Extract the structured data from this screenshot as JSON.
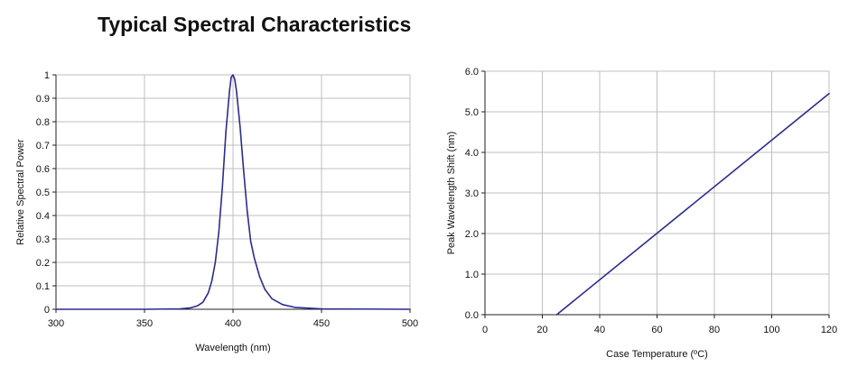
{
  "page_title": "Typical Spectral Characteristics",
  "colors": {
    "line": "#2b2b8f",
    "grid": "#bfbfbf",
    "axis": "#222222",
    "background": "#ffffff"
  },
  "chart_data": [
    {
      "type": "line",
      "title": "",
      "xlabel": "Wavelength (nm)",
      "ylabel": "Relative Spectral Power",
      "xlim": [
        300,
        500
      ],
      "ylim": [
        0,
        1
      ],
      "xticks": [
        300,
        350,
        400,
        450,
        500
      ],
      "xtick_labels": [
        "300",
        "350",
        "400",
        "450",
        "500"
      ],
      "yticks": [
        0,
        0.1,
        0.2,
        0.3,
        0.4,
        0.5,
        0.6,
        0.7,
        0.8,
        0.9,
        1
      ],
      "ytick_labels": [
        "0",
        "0.1",
        "0.2",
        "0.3",
        "0.4",
        "0.5",
        "0.6",
        "0.7",
        "0.8",
        "0.9",
        "1"
      ],
      "grid": true,
      "legend": "none",
      "series": [
        {
          "x": [
            300,
            350,
            370,
            376,
            380,
            383,
            386,
            388,
            390,
            392,
            394,
            396,
            398,
            399,
            400,
            401,
            402,
            404,
            406,
            408,
            410,
            412,
            415,
            418,
            422,
            428,
            435,
            450,
            500
          ],
          "y": [
            0,
            0,
            0.002,
            0.006,
            0.015,
            0.03,
            0.07,
            0.12,
            0.2,
            0.33,
            0.52,
            0.76,
            0.93,
            0.99,
            1.0,
            0.98,
            0.93,
            0.78,
            0.59,
            0.42,
            0.29,
            0.22,
            0.14,
            0.085,
            0.045,
            0.02,
            0.008,
            0.002,
            0
          ]
        }
      ]
    },
    {
      "type": "line",
      "title": "",
      "xlabel": "Case Temperature (ºC)",
      "ylabel": "Peak Wavelength Shift (nm)",
      "xlim": [
        0,
        120
      ],
      "ylim": [
        0,
        6
      ],
      "xticks": [
        0,
        20,
        40,
        60,
        80,
        100,
        120
      ],
      "xtick_labels": [
        "0",
        "20",
        "40",
        "60",
        "80",
        "100",
        "120"
      ],
      "yticks": [
        0,
        1,
        2,
        3,
        4,
        5,
        6
      ],
      "ytick_labels": [
        "0.0",
        "1.0",
        "2.0",
        "3.0",
        "4.0",
        "5.0",
        "6.0"
      ],
      "grid": true,
      "legend": "none",
      "series": [
        {
          "x": [
            25,
            120
          ],
          "y": [
            0,
            5.45
          ]
        }
      ]
    }
  ]
}
